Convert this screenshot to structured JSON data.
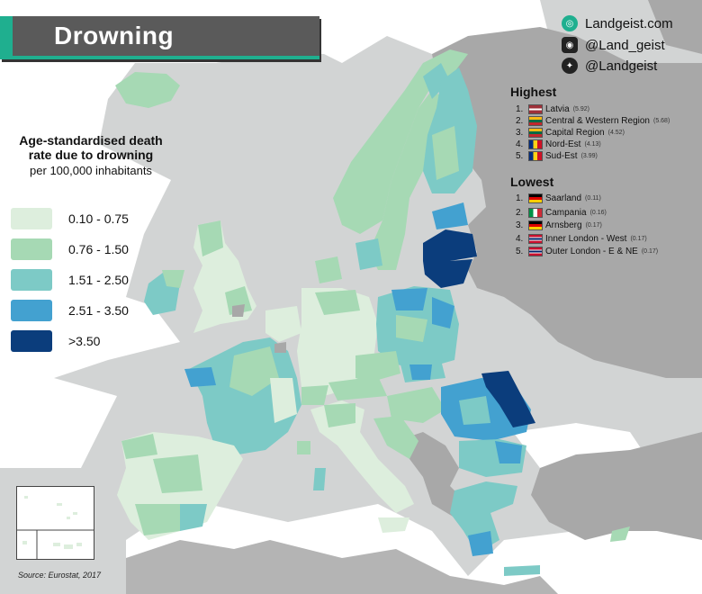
{
  "title": "Drowning",
  "social": [
    {
      "icon": "globe-icon",
      "label": "Landgeist.com"
    },
    {
      "icon": "instagram-icon",
      "label": "@Land_geist"
    },
    {
      "icon": "twitter-icon",
      "label": "@Landgeist"
    }
  ],
  "legend": {
    "title": "Age-standardised death rate due to drowning",
    "subtitle": "per 100,000 inhabitants",
    "items": [
      {
        "label": "0.10 - 0.75",
        "color": "#ddeedd"
      },
      {
        "label": "0.76 - 1.50",
        "color": "#a6d9b4"
      },
      {
        "label": "1.51 - 2.50",
        "color": "#7dcac6"
      },
      {
        "label": "2.51 - 3.50",
        "color": "#43a1d0"
      },
      {
        "label": ">3.50",
        "color": "#0b3d7c"
      }
    ]
  },
  "highest": {
    "heading": "Highest",
    "items": [
      {
        "rank": "1.",
        "name": "Latvia",
        "value": "(5.92)",
        "flag": "latvia"
      },
      {
        "rank": "2.",
        "name": "Central & Western Region",
        "value": "(5.68)",
        "flag": "lithuania"
      },
      {
        "rank": "3.",
        "name": "Capital Region",
        "value": "(4.52)",
        "flag": "lithuania"
      },
      {
        "rank": "4.",
        "name": "Nord-Est",
        "value": "(4.13)",
        "flag": "romania"
      },
      {
        "rank": "5.",
        "name": "Sud-Est",
        "value": "(3.99)",
        "flag": "romania"
      }
    ]
  },
  "lowest": {
    "heading": "Lowest",
    "items": [
      {
        "rank": "1.",
        "name": "Saarland",
        "value": "(0.11)",
        "flag": "germany"
      },
      {
        "rank": "2.",
        "name": "Campania",
        "value": "(0.16)",
        "flag": "italy"
      },
      {
        "rank": "3.",
        "name": "Arnsberg",
        "value": "(0.17)",
        "flag": "germany"
      },
      {
        "rank": "4.",
        "name": "Inner London - West",
        "value": "(0.17)",
        "flag": "uk"
      },
      {
        "rank": "5.",
        "name": "Outer London - E & NE",
        "value": "(0.17)",
        "flag": "uk"
      }
    ]
  },
  "source": "Source: Eurostat, 2017",
  "colors": {
    "background": "#d2d4d4",
    "sea": "#ffffff",
    "nodata": "#a8a8a8",
    "accent": "#1faf8f"
  }
}
